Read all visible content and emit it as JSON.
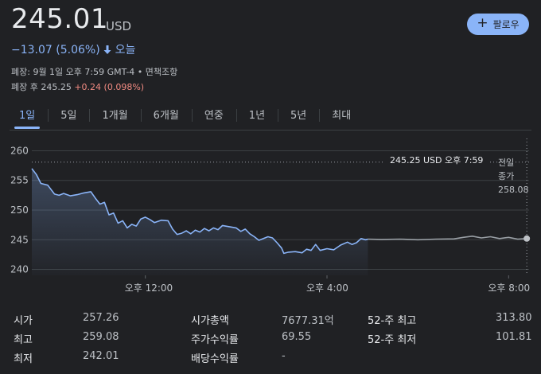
{
  "header": {
    "price": "245.01",
    "currency": "USD",
    "follow_label": "팔로우",
    "change": "−13.07 (5.06%)",
    "change_period": "오늘",
    "close_line": "폐장: 9월 1일 오후 7:59 GMT-4 • 면책조항",
    "after_hours_prefix": "폐장 후 245.25",
    "after_hours_change": "+0.24 (0.098%)",
    "accent_color": "#8ab4f8",
    "down_color": "#8ab4f8",
    "up_color": "#f28b82"
  },
  "tabs": [
    "1일",
    "5일",
    "1개월",
    "6개월",
    "연중",
    "1년",
    "5년",
    "최대"
  ],
  "active_tab": "1일",
  "chart_data": {
    "type": "line",
    "y_ticks": [
      "260",
      "255",
      "250",
      "245",
      "240"
    ],
    "ylim": [
      239,
      261
    ],
    "x_ticks": [
      "오후 12:00",
      "오후 4:00",
      "오후 8:00"
    ],
    "tooltip": "245.25 USD  오후 7:59",
    "prev_close_label_1": "전일",
    "prev_close_label_2": "종가",
    "prev_close_value": "258.08",
    "prev_close": 258.08,
    "grid": true,
    "series": [
      {
        "values": [
          [
            9.5,
            257.0
          ],
          [
            9.6,
            256.0
          ],
          [
            9.7,
            254.5
          ],
          [
            9.85,
            254.2
          ],
          [
            10.0,
            252.7
          ],
          [
            10.1,
            252.5
          ],
          [
            10.2,
            252.8
          ],
          [
            10.35,
            252.4
          ],
          [
            10.5,
            252.6
          ],
          [
            10.65,
            252.9
          ],
          [
            10.8,
            253.1
          ],
          [
            10.9,
            252.0
          ],
          [
            11.0,
            251.0
          ],
          [
            11.1,
            251.3
          ],
          [
            11.2,
            249.2
          ],
          [
            11.3,
            249.5
          ],
          [
            11.4,
            247.8
          ],
          [
            11.5,
            248.2
          ],
          [
            11.6,
            247.0
          ],
          [
            11.7,
            247.6
          ],
          [
            11.8,
            247.3
          ],
          [
            11.9,
            248.5
          ],
          [
            12.0,
            248.8
          ],
          [
            12.1,
            248.4
          ],
          [
            12.2,
            247.9
          ],
          [
            12.35,
            248.3
          ],
          [
            12.5,
            248.2
          ],
          [
            12.6,
            246.8
          ],
          [
            12.7,
            245.9
          ],
          [
            12.8,
            246.1
          ],
          [
            12.9,
            246.5
          ],
          [
            13.0,
            246.0
          ],
          [
            13.1,
            246.6
          ],
          [
            13.2,
            246.3
          ],
          [
            13.3,
            246.9
          ],
          [
            13.4,
            246.5
          ],
          [
            13.5,
            247.0
          ],
          [
            13.6,
            246.7
          ],
          [
            13.7,
            247.4
          ],
          [
            13.85,
            247.2
          ],
          [
            14.0,
            247.0
          ],
          [
            14.1,
            246.4
          ],
          [
            14.2,
            246.8
          ],
          [
            14.3,
            246.0
          ],
          [
            14.4,
            245.5
          ],
          [
            14.5,
            244.9
          ],
          [
            14.6,
            245.2
          ],
          [
            14.7,
            245.5
          ],
          [
            14.8,
            245.3
          ],
          [
            14.9,
            244.5
          ],
          [
            15.0,
            243.6
          ],
          [
            15.05,
            242.7
          ],
          [
            15.15,
            242.9
          ],
          [
            15.3,
            243.0
          ],
          [
            15.45,
            242.8
          ],
          [
            15.55,
            243.4
          ],
          [
            15.65,
            243.2
          ],
          [
            15.75,
            244.2
          ],
          [
            15.85,
            243.2
          ],
          [
            16.0,
            243.5
          ],
          [
            16.15,
            243.3
          ],
          [
            16.3,
            244.1
          ],
          [
            16.45,
            244.6
          ],
          [
            16.55,
            244.2
          ],
          [
            16.65,
            244.5
          ],
          [
            16.75,
            245.2
          ],
          [
            16.85,
            245.0
          ],
          [
            16.9,
            245.1
          ]
        ]
      },
      {
        "values": [
          [
            16.9,
            245.1
          ],
          [
            17.2,
            245.05
          ],
          [
            17.6,
            245.1
          ],
          [
            18.0,
            245.0
          ],
          [
            18.4,
            245.1
          ],
          [
            18.8,
            245.15
          ],
          [
            19.0,
            245.4
          ],
          [
            19.2,
            245.6
          ],
          [
            19.4,
            245.3
          ],
          [
            19.6,
            245.5
          ],
          [
            19.8,
            245.2
          ],
          [
            20.0,
            245.4
          ],
          [
            20.2,
            245.1
          ],
          [
            20.4,
            245.2
          ]
        ]
      }
    ],
    "x_tick_values": [
      12,
      16,
      20
    ]
  },
  "stats": [
    {
      "label": "시가",
      "value": "257.26"
    },
    {
      "label": "최고",
      "value": "259.08"
    },
    {
      "label": "최저",
      "value": "242.01"
    },
    {
      "label": "시가총액",
      "value": "7677.31억"
    },
    {
      "label": "주가수익률",
      "value": "69.55"
    },
    {
      "label": "배당수익률",
      "value": "-"
    },
    {
      "label": "52-주 최고",
      "value": "313.80"
    },
    {
      "label": "52-주 최저",
      "value": "101.81"
    }
  ]
}
